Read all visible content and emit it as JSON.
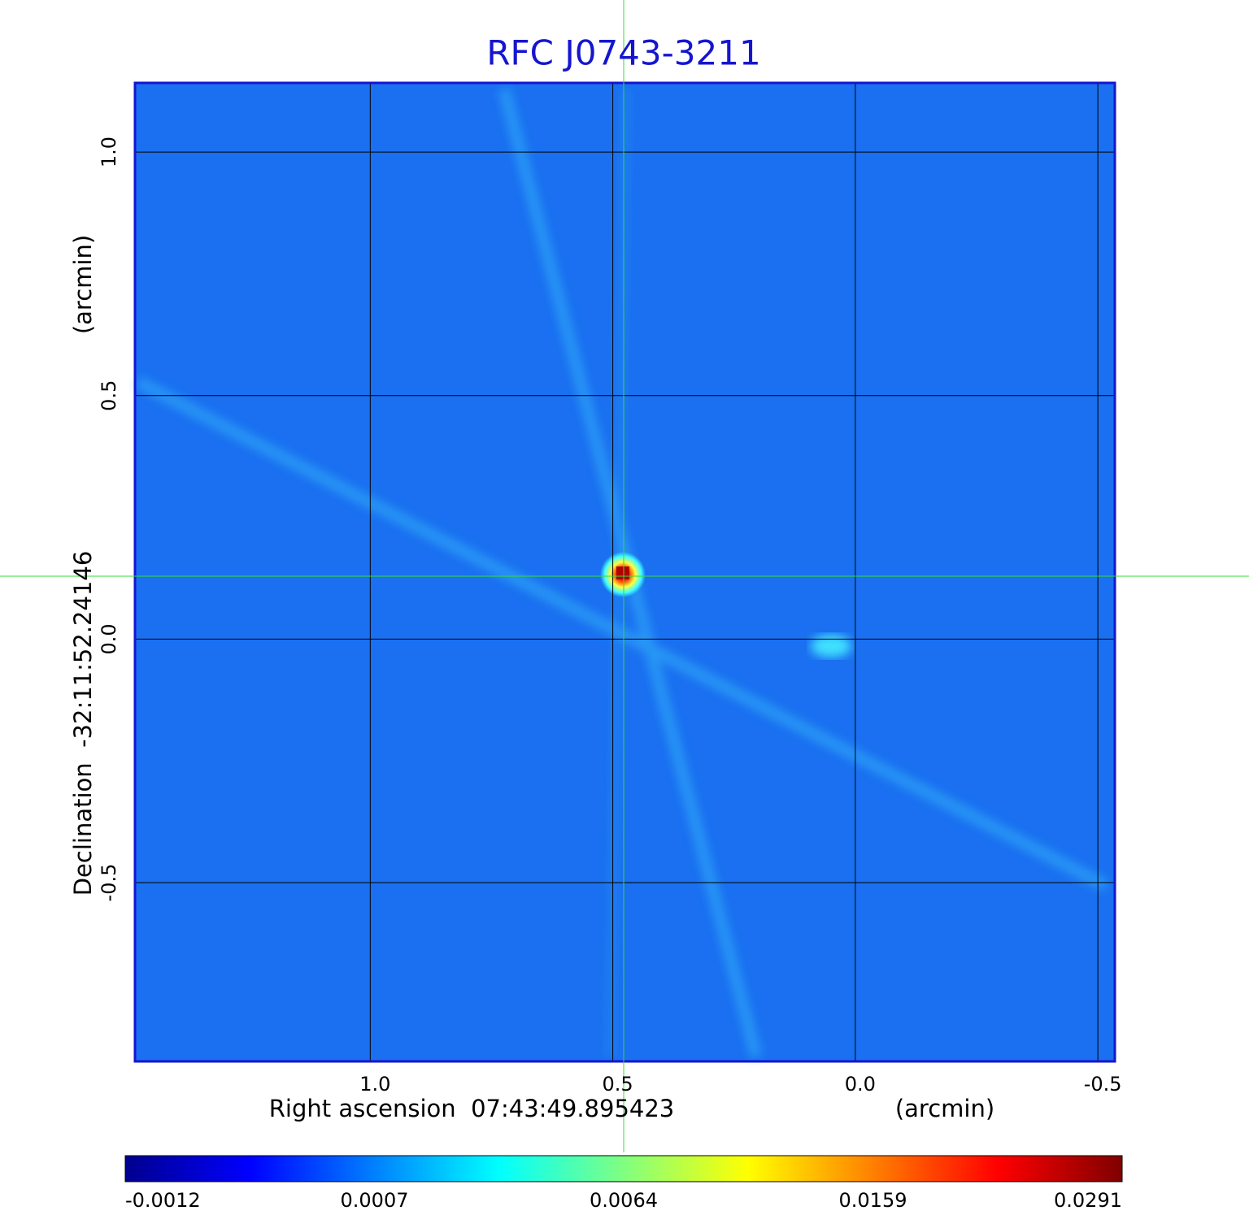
{
  "chart_data": {
    "type": "image",
    "title": "RFC J0743-3211",
    "x_label": "Right ascension  07:43:49.895423",
    "x_unit": "(arcmin)",
    "y_label": "Declination  -32:11:52.24146",
    "y_unit": "(arcmin)",
    "xlim": [
      1.485,
      -0.535
    ],
    "ylim": [
      -0.867,
      1.142
    ],
    "xticks": [
      {
        "value": 1,
        "label": "1.0"
      },
      0.5,
      {
        "value": 0,
        "label": "0.0"
      },
      -0.5
    ],
    "yticks": [
      -0.5,
      {
        "value": 0,
        "label": "0.0"
      },
      0.5,
      {
        "value": 1,
        "label": "1.0"
      }
    ],
    "grid": true,
    "colorbar": {
      "ticks": [
        -0.0012,
        0.0007,
        0.0064,
        0.0159,
        0.0291
      ],
      "colors": [
        "#00008f",
        "#0000ff",
        "#0080ff",
        "#00ffff",
        "#80ff80",
        "#ffff00",
        "#ff8000",
        "#ff0000",
        "#800000"
      ]
    }
  }
}
